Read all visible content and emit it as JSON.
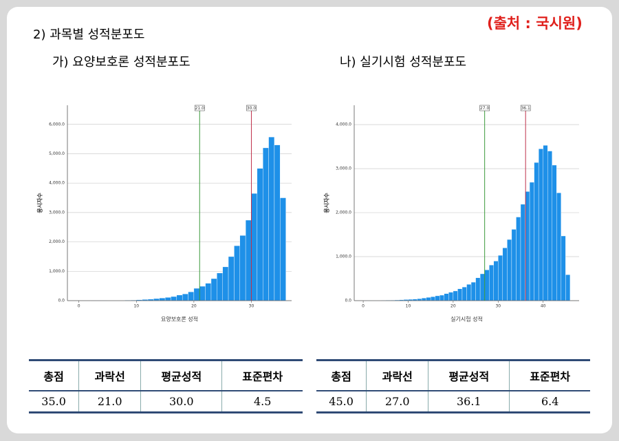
{
  "header": {
    "title": "2) 과목별 성적분포도",
    "source": "(출처 : 국시원)"
  },
  "chart_data": [
    {
      "type": "histogram",
      "title": "가) 요양보호론 성적분포도",
      "xlabel": "요양보호론 성적",
      "ylabel": "응시자수",
      "color": "#1e90e8",
      "bins": [
        0,
        1,
        2,
        3,
        4,
        5,
        6,
        7,
        8,
        9,
        10,
        11,
        12,
        13,
        14,
        15,
        16,
        17,
        18,
        19,
        20,
        21,
        22,
        23,
        24,
        25,
        26,
        27,
        28,
        29,
        30,
        31,
        32,
        33,
        34,
        35,
        36
      ],
      "values": [
        1,
        1,
        2,
        3,
        4,
        5,
        8,
        10,
        15,
        20,
        30,
        40,
        50,
        70,
        90,
        110,
        140,
        190,
        230,
        300,
        420,
        490,
        590,
        750,
        940,
        1150,
        1500,
        1870,
        2220,
        2740,
        3650,
        4500,
        5200,
        5570,
        5300,
        3500
      ],
      "xlim": [
        -2,
        37
      ],
      "ylim": [
        0,
        6650
      ],
      "xticks": [
        0,
        10,
        20,
        30
      ],
      "yticks": [
        {
          "value": 0,
          "label": "0.0"
        },
        {
          "value": 1000,
          "label": "1,000.0"
        },
        {
          "value": 2000,
          "label": "2,000.0"
        },
        {
          "value": 3000,
          "label": "3,000.0"
        },
        {
          "value": 4000,
          "label": "4,000.0"
        },
        {
          "value": 5000,
          "label": "5,000.0"
        },
        {
          "value": 6000,
          "label": "6,000.0"
        }
      ],
      "grid": true,
      "markers": [
        {
          "value": 21,
          "label": "21.0",
          "color": "#3a9a3a"
        },
        {
          "value": 30,
          "label": "30.0",
          "color": "#c0304a"
        }
      ]
    },
    {
      "type": "histogram",
      "title": "나) 실기시험 성적분포도",
      "xlabel": "실기시험 성적",
      "ylabel": "응시자수",
      "color": "#1e90e8",
      "bins": [
        0,
        1,
        2,
        3,
        4,
        5,
        6,
        7,
        8,
        9,
        10,
        11,
        12,
        13,
        14,
        15,
        16,
        17,
        18,
        19,
        20,
        21,
        22,
        23,
        24,
        25,
        26,
        27,
        28,
        29,
        30,
        31,
        32,
        33,
        34,
        35,
        36,
        37,
        38,
        39,
        40,
        41,
        42,
        43,
        44,
        45,
        46
      ],
      "values": [
        2,
        3,
        4,
        6,
        8,
        10,
        12,
        15,
        20,
        25,
        30,
        35,
        45,
        60,
        75,
        90,
        110,
        125,
        160,
        190,
        220,
        270,
        310,
        370,
        420,
        520,
        610,
        700,
        810,
        900,
        1030,
        1200,
        1390,
        1620,
        1900,
        2190,
        2480,
        2690,
        3140,
        3450,
        3530,
        3400,
        3080,
        2450,
        1470,
        590
      ],
      "xlim": [
        -2,
        48
      ],
      "ylim": [
        0,
        4440
      ],
      "xticks": [
        0,
        10,
        20,
        30,
        40
      ],
      "yticks": [
        {
          "value": 0,
          "label": "0.0"
        },
        {
          "value": 1000,
          "label": "1,000.0"
        },
        {
          "value": 2000,
          "label": "2,000.0"
        },
        {
          "value": 3000,
          "label": "3,000.0"
        },
        {
          "value": 4000,
          "label": "4,000.0"
        }
      ],
      "grid": true,
      "markers": [
        {
          "value": 27,
          "label": "27.0",
          "color": "#3a9a3a"
        },
        {
          "value": 36.1,
          "label": "36.1",
          "color": "#c0304a"
        }
      ]
    }
  ],
  "tables": [
    {
      "header": [
        "총점",
        "과락선",
        "평균성적",
        "표준편차"
      ],
      "row": [
        "35.0",
        "21.0",
        "30.0",
        "4.5"
      ]
    },
    {
      "header": [
        "총점",
        "과락선",
        "평균성적",
        "표준편차"
      ],
      "row": [
        "45.0",
        "27.0",
        "36.1",
        "6.4"
      ]
    }
  ]
}
